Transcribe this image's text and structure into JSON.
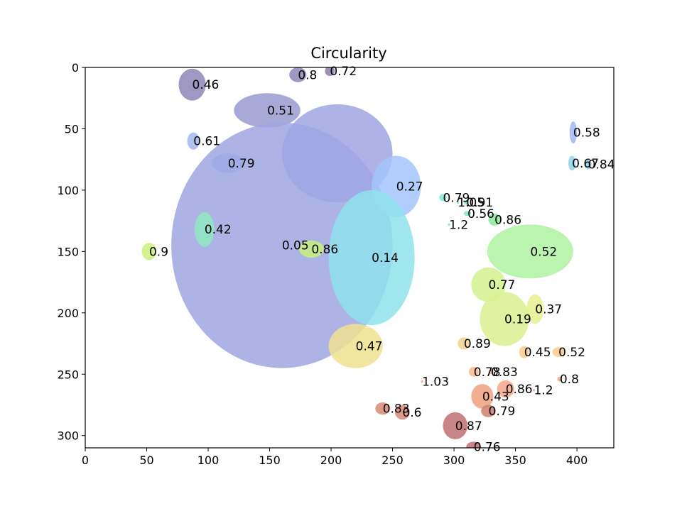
{
  "chart_data": {
    "type": "scatter",
    "title": "Circularity",
    "xlabel": "",
    "ylabel": "",
    "xlim": [
      0,
      430
    ],
    "ylim": [
      310,
      0
    ],
    "y_inverted": true,
    "grid": false,
    "x_ticks": [
      0,
      50,
      100,
      150,
      200,
      250,
      300,
      350,
      400
    ],
    "y_ticks": [
      0,
      50,
      100,
      150,
      200,
      250,
      300
    ],
    "regions": [
      {
        "x": 87,
        "y": 14,
        "label": "0.46",
        "color": "#8e86b8",
        "rx": 11,
        "ry": 13
      },
      {
        "x": 173,
        "y": 6,
        "label": "0.8",
        "color": "#8e86b8",
        "rx": 7,
        "ry": 6
      },
      {
        "x": 199,
        "y": 3,
        "label": "0.72",
        "color": "#8e7fa6",
        "rx": 4,
        "ry": 4
      },
      {
        "x": 148,
        "y": 35,
        "label": "0.51",
        "color": "#9a9ad0",
        "rx": 27,
        "ry": 14
      },
      {
        "x": 88,
        "y": 60,
        "label": "0.61",
        "color": "#a2b6f2",
        "rx": 5,
        "ry": 7
      },
      {
        "x": 116,
        "y": 78,
        "label": "0.79",
        "color": "#8ec4f6",
        "rx": 13,
        "ry": 8
      },
      {
        "x": 160,
        "y": 145,
        "label": "0.05",
        "color": "#a0a6e2",
        "rx": 90,
        "ry": 100
      },
      {
        "x": 205,
        "y": 70,
        "label": "",
        "color": "#a0a6e2",
        "rx": 45,
        "ry": 40
      },
      {
        "x": 253,
        "y": 97,
        "label": "0.27",
        "color": "#a3c4fa",
        "rx": 20,
        "ry": 25
      },
      {
        "x": 233,
        "y": 155,
        "label": "0.14",
        "color": "#8ee2ec",
        "rx": 35,
        "ry": 55
      },
      {
        "x": 97,
        "y": 132,
        "label": "0.42",
        "color": "#8ee8c0",
        "rx": 8,
        "ry": 14
      },
      {
        "x": 52,
        "y": 150,
        "label": "0.9",
        "color": "#ccf07a",
        "rx": 6,
        "ry": 7
      },
      {
        "x": 184,
        "y": 148,
        "label": "0.86",
        "color": "#c8f07a",
        "rx": 10,
        "ry": 7
      },
      {
        "x": 220,
        "y": 227,
        "label": "0.47",
        "color": "#f0e08e",
        "rx": 22,
        "ry": 18
      },
      {
        "x": 397,
        "y": 53,
        "label": "0.58",
        "color": "#a2b6f2",
        "rx": 3,
        "ry": 9
      },
      {
        "x": 396,
        "y": 78,
        "label": "0.67",
        "color": "#8ed4f0",
        "rx": 3,
        "ry": 6
      },
      {
        "x": 409,
        "y": 79,
        "label": "0.84",
        "color": "#8ed4f0",
        "rx": 3,
        "ry": 4
      },
      {
        "x": 291,
        "y": 106,
        "label": "0.79",
        "color": "#7ee8d8",
        "rx": 3,
        "ry": 3
      },
      {
        "x": 303,
        "y": 110,
        "label": "1.05",
        "color": "#7ee8d8",
        "rx": 1,
        "ry": 1
      },
      {
        "x": 310,
        "y": 110,
        "label": "0.91",
        "color": "#7ee8c8",
        "rx": 2,
        "ry": 2
      },
      {
        "x": 311,
        "y": 119,
        "label": "0.56",
        "color": "#7ee8c0",
        "rx": 3,
        "ry": 2
      },
      {
        "x": 333,
        "y": 124,
        "label": "0.86",
        "color": "#8ee89a",
        "rx": 5,
        "ry": 5
      },
      {
        "x": 296,
        "y": 128,
        "label": "1.2",
        "color": "#8ee8a0",
        "rx": 1,
        "ry": 1
      },
      {
        "x": 362,
        "y": 150,
        "label": "0.52",
        "color": "#aef2a0",
        "rx": 35,
        "ry": 22
      },
      {
        "x": 328,
        "y": 177,
        "label": "0.77",
        "color": "#d2f28e",
        "rx": 14,
        "ry": 14
      },
      {
        "x": 366,
        "y": 197,
        "label": "0.37",
        "color": "#e6ee8e",
        "rx": 7,
        "ry": 12
      },
      {
        "x": 341,
        "y": 205,
        "label": "0.19",
        "color": "#daf08e",
        "rx": 20,
        "ry": 22
      },
      {
        "x": 308,
        "y": 225,
        "label": "0.89",
        "color": "#f0d48e",
        "rx": 5,
        "ry": 5
      },
      {
        "x": 357,
        "y": 232,
        "label": "0.45",
        "color": "#f8cc8e",
        "rx": 4,
        "ry": 5
      },
      {
        "x": 385,
        "y": 232,
        "label": "0.52",
        "color": "#f8cc8e",
        "rx": 5,
        "ry": 4
      },
      {
        "x": 316,
        "y": 248,
        "label": "0.78",
        "color": "#f8b88e",
        "rx": 4,
        "ry": 4
      },
      {
        "x": 330,
        "y": 248,
        "label": "0.83",
        "color": "#f8b88e",
        "rx": 2,
        "ry": 2
      },
      {
        "x": 274,
        "y": 256,
        "label": "1.03",
        "color": "#f4a88e",
        "rx": 1,
        "ry": 1
      },
      {
        "x": 323,
        "y": 268,
        "label": "0.43",
        "color": "#f0a080",
        "rx": 9,
        "ry": 10
      },
      {
        "x": 342,
        "y": 262,
        "label": "0.86",
        "color": "#f4a888",
        "rx": 7,
        "ry": 7
      },
      {
        "x": 365,
        "y": 263,
        "label": "1.2",
        "color": "#f4a888",
        "rx": 1,
        "ry": 1
      },
      {
        "x": 386,
        "y": 254,
        "label": "0.8",
        "color": "#f4a888",
        "rx": 2,
        "ry": 2
      },
      {
        "x": 242,
        "y": 278,
        "label": "0.83",
        "color": "#d88876",
        "rx": 6,
        "ry": 5
      },
      {
        "x": 258,
        "y": 281,
        "label": "0.6",
        "color": "#d88876",
        "rx": 6,
        "ry": 6
      },
      {
        "x": 328,
        "y": 280,
        "label": "0.79",
        "color": "#cc8070",
        "rx": 6,
        "ry": 5
      },
      {
        "x": 301,
        "y": 292,
        "label": "0.87",
        "color": "#c07070",
        "rx": 10,
        "ry": 11
      },
      {
        "x": 316,
        "y": 309,
        "label": "0.76",
        "color": "#c07070",
        "rx": 6,
        "ry": 4
      }
    ]
  }
}
